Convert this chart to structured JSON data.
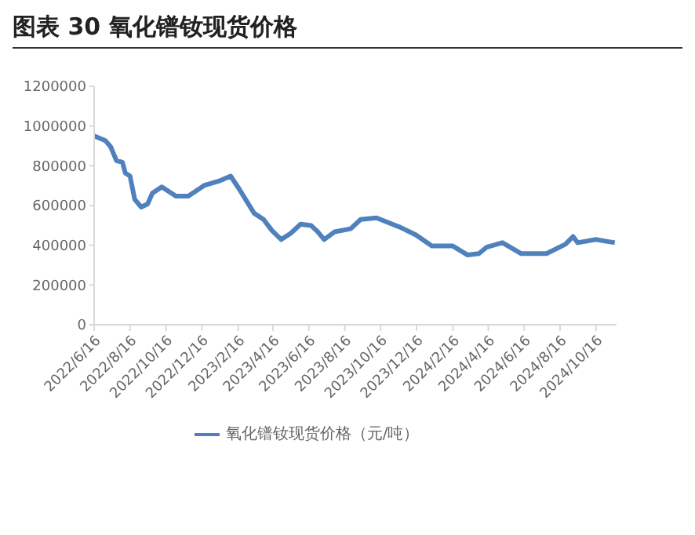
{
  "chart_data": {
    "type": "line",
    "title": "图表 30  氧化镨钕现货价格",
    "x": [
      "2022-06-16",
      "2022-07-05",
      "2022-07-14",
      "2022-07-24",
      "2022-08-03",
      "2022-08-08",
      "2022-08-16",
      "2022-08-24",
      "2022-09-04",
      "2022-09-15",
      "2022-09-23",
      "2022-10-09",
      "2022-11-02",
      "2022-11-23",
      "2022-12-20",
      "2023-01-16",
      "2023-02-03",
      "2023-02-17",
      "2023-03-02",
      "2023-03-15",
      "2023-03-31",
      "2023-04-14",
      "2023-04-30",
      "2023-05-16",
      "2023-06-02",
      "2023-06-20",
      "2023-07-01",
      "2023-07-12",
      "2023-07-30",
      "2023-08-26",
      "2023-09-12",
      "2023-10-09",
      "2023-11-18",
      "2023-12-15",
      "2024-01-11",
      "2024-02-15",
      "2024-03-12",
      "2024-03-31",
      "2024-04-13",
      "2024-05-10",
      "2024-06-11",
      "2024-07-24",
      "2024-08-25",
      "2024-09-07",
      "2024-09-15",
      "2024-10-16",
      "2024-11-17"
    ],
    "series": [
      {
        "name": "氧化镨钕现货价格（元/吨）",
        "color": "#4f81bd",
        "values": [
          950000,
          927000,
          896000,
          826000,
          818000,
          764000,
          748000,
          631000,
          592000,
          608000,
          662000,
          694000,
          647000,
          647000,
          701000,
          725000,
          748000,
          686000,
          623000,
          561000,
          530000,
          475000,
          429000,
          460000,
          506000,
          499000,
          468000,
          429000,
          468000,
          483000,
          530000,
          538000,
          491000,
          452000,
          397000,
          397000,
          351000,
          358000,
          390000,
          413000,
          358000,
          358000,
          405000,
          444000,
          413000,
          429000,
          413000
        ]
      }
    ],
    "xlim": [
      "2022-06-16",
      "2024-11-20"
    ],
    "xticks": [
      {
        "value": "2022-06-16",
        "label": "2022/6/16"
      },
      {
        "value": "2022-08-16",
        "label": "2022/8/16"
      },
      {
        "value": "2022-10-16",
        "label": "2022/10/16"
      },
      {
        "value": "2022-12-16",
        "label": "2022/12/16"
      },
      {
        "value": "2023-02-16",
        "label": "2023/2/16"
      },
      {
        "value": "2023-04-16",
        "label": "2023/4/16"
      },
      {
        "value": "2023-06-16",
        "label": "2023/6/16"
      },
      {
        "value": "2023-08-16",
        "label": "2023/8/16"
      },
      {
        "value": "2023-10-16",
        "label": "2023/10/16"
      },
      {
        "value": "2023-12-16",
        "label": "2023/12/16"
      },
      {
        "value": "2024-02-16",
        "label": "2024/2/16"
      },
      {
        "value": "2024-04-16",
        "label": "2024/4/16"
      },
      {
        "value": "2024-06-16",
        "label": "2024/6/16"
      },
      {
        "value": "2024-08-16",
        "label": "2024/8/16"
      },
      {
        "value": "2024-10-16",
        "label": "2024/10/16"
      }
    ],
    "ylim": [
      0,
      1200000
    ],
    "yticks": [
      0,
      200000,
      400000,
      600000,
      800000,
      1000000,
      1200000
    ],
    "grid": false,
    "legend": "bottom",
    "marker": "none",
    "line_style": "solid"
  }
}
